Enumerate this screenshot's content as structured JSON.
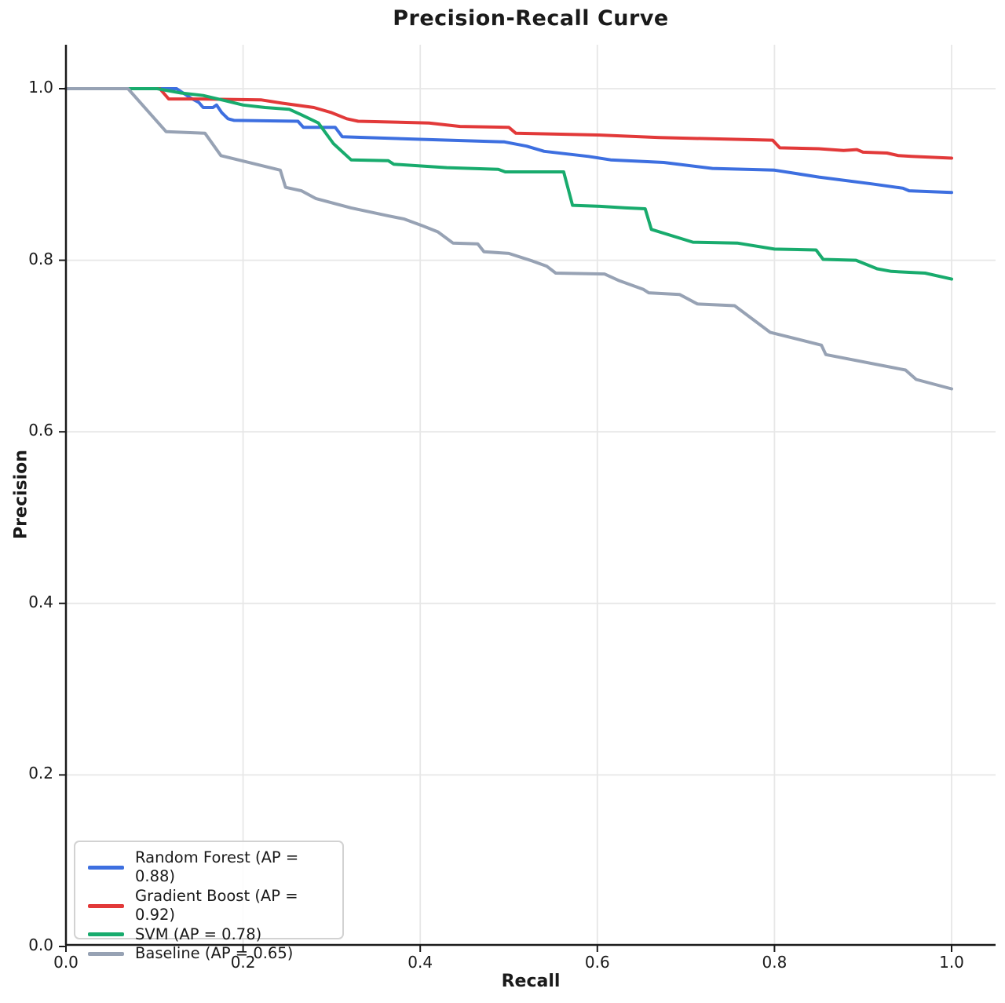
{
  "colors": {
    "grid": "#E7E7E7",
    "spine": "#1A1A1A",
    "text": "#1A1A1A",
    "legend_border": "#D2D2D2",
    "background": "#FFFFFF"
  },
  "chart_data": {
    "type": "line",
    "title": "Precision-Recall Curve",
    "xlabel": "Recall",
    "ylabel": "Precision",
    "xlim": [
      0,
      1.05
    ],
    "ylim": [
      0,
      1.05
    ],
    "xticks": [
      0.0,
      0.2,
      0.4,
      0.6,
      0.8,
      1.0
    ],
    "yticks": [
      0.0,
      0.2,
      0.4,
      0.6,
      0.8,
      1.0
    ],
    "grid": true,
    "legend_position": "lower left",
    "series": [
      {
        "name": "Random Forest",
        "ap": 0.88,
        "legend_label": "Random Forest (AP = 0.88)",
        "color": "#3D6FE0",
        "points": [
          [
            0,
            1.0
          ],
          [
            0.125,
            1.0
          ],
          [
            0.141,
            0.989
          ],
          [
            0.15,
            0.984
          ],
          [
            0.155,
            0.978
          ],
          [
            0.166,
            0.978
          ],
          [
            0.17,
            0.981
          ],
          [
            0.176,
            0.972
          ],
          [
            0.183,
            0.965
          ],
          [
            0.19,
            0.963
          ],
          [
            0.262,
            0.962
          ],
          [
            0.268,
            0.955
          ],
          [
            0.304,
            0.955
          ],
          [
            0.312,
            0.944
          ],
          [
            0.4,
            0.941
          ],
          [
            0.495,
            0.938
          ],
          [
            0.52,
            0.933
          ],
          [
            0.54,
            0.927
          ],
          [
            0.59,
            0.921
          ],
          [
            0.615,
            0.917
          ],
          [
            0.675,
            0.914
          ],
          [
            0.73,
            0.907
          ],
          [
            0.8,
            0.905
          ],
          [
            0.85,
            0.897
          ],
          [
            0.91,
            0.889
          ],
          [
            0.945,
            0.884
          ],
          [
            0.952,
            0.881
          ],
          [
            1.0,
            0.879
          ]
        ]
      },
      {
        "name": "Gradient Boost",
        "ap": 0.92,
        "legend_label": "Gradient Boost (AP = 0.92)",
        "color": "#E23939",
        "points": [
          [
            0,
            1.0
          ],
          [
            0.106,
            1.0
          ],
          [
            0.116,
            0.988
          ],
          [
            0.15,
            0.988
          ],
          [
            0.22,
            0.987
          ],
          [
            0.245,
            0.983
          ],
          [
            0.28,
            0.978
          ],
          [
            0.3,
            0.972
          ],
          [
            0.317,
            0.965
          ],
          [
            0.33,
            0.962
          ],
          [
            0.41,
            0.96
          ],
          [
            0.445,
            0.956
          ],
          [
            0.5,
            0.955
          ],
          [
            0.508,
            0.948
          ],
          [
            0.6,
            0.946
          ],
          [
            0.67,
            0.943
          ],
          [
            0.798,
            0.94
          ],
          [
            0.806,
            0.931
          ],
          [
            0.85,
            0.93
          ],
          [
            0.878,
            0.928
          ],
          [
            0.893,
            0.929
          ],
          [
            0.9,
            0.926
          ],
          [
            0.927,
            0.925
          ],
          [
            0.94,
            0.922
          ],
          [
            0.955,
            0.921
          ],
          [
            1.0,
            0.919
          ]
        ]
      },
      {
        "name": "SVM",
        "ap": 0.78,
        "legend_label": "SVM (AP = 0.78)",
        "color": "#18AB6D",
        "points": [
          [
            0,
            1.0
          ],
          [
            0.103,
            1.0
          ],
          [
            0.13,
            0.995
          ],
          [
            0.155,
            0.992
          ],
          [
            0.18,
            0.986
          ],
          [
            0.2,
            0.981
          ],
          [
            0.225,
            0.978
          ],
          [
            0.252,
            0.976
          ],
          [
            0.265,
            0.97
          ],
          [
            0.285,
            0.96
          ],
          [
            0.302,
            0.936
          ],
          [
            0.322,
            0.917
          ],
          [
            0.364,
            0.916
          ],
          [
            0.37,
            0.912
          ],
          [
            0.43,
            0.908
          ],
          [
            0.488,
            0.906
          ],
          [
            0.496,
            0.903
          ],
          [
            0.562,
            0.903
          ],
          [
            0.572,
            0.864
          ],
          [
            0.6,
            0.863
          ],
          [
            0.632,
            0.861
          ],
          [
            0.654,
            0.86
          ],
          [
            0.661,
            0.836
          ],
          [
            0.708,
            0.821
          ],
          [
            0.758,
            0.82
          ],
          [
            0.8,
            0.813
          ],
          [
            0.847,
            0.812
          ],
          [
            0.855,
            0.801
          ],
          [
            0.892,
            0.8
          ],
          [
            0.916,
            0.79
          ],
          [
            0.932,
            0.787
          ],
          [
            0.97,
            0.785
          ],
          [
            1.0,
            0.778
          ]
        ]
      },
      {
        "name": "Baseline",
        "ap": 0.65,
        "legend_label": "Baseline (AP = 0.65)",
        "color": "#97A2B4",
        "points": [
          [
            0,
            1.0
          ],
          [
            0.07,
            1.0
          ],
          [
            0.113,
            0.95
          ],
          [
            0.157,
            0.948
          ],
          [
            0.175,
            0.922
          ],
          [
            0.242,
            0.905
          ],
          [
            0.248,
            0.885
          ],
          [
            0.266,
            0.881
          ],
          [
            0.282,
            0.872
          ],
          [
            0.322,
            0.861
          ],
          [
            0.363,
            0.852
          ],
          [
            0.382,
            0.848
          ],
          [
            0.403,
            0.84
          ],
          [
            0.42,
            0.833
          ],
          [
            0.437,
            0.82
          ],
          [
            0.465,
            0.819
          ],
          [
            0.472,
            0.81
          ],
          [
            0.5,
            0.808
          ],
          [
            0.527,
            0.799
          ],
          [
            0.543,
            0.793
          ],
          [
            0.553,
            0.785
          ],
          [
            0.608,
            0.784
          ],
          [
            0.625,
            0.776
          ],
          [
            0.652,
            0.766
          ],
          [
            0.658,
            0.762
          ],
          [
            0.693,
            0.76
          ],
          [
            0.713,
            0.749
          ],
          [
            0.755,
            0.747
          ],
          [
            0.795,
            0.716
          ],
          [
            0.853,
            0.701
          ],
          [
            0.858,
            0.69
          ],
          [
            0.948,
            0.672
          ],
          [
            0.96,
            0.661
          ],
          [
            1.0,
            0.65
          ]
        ]
      }
    ]
  }
}
